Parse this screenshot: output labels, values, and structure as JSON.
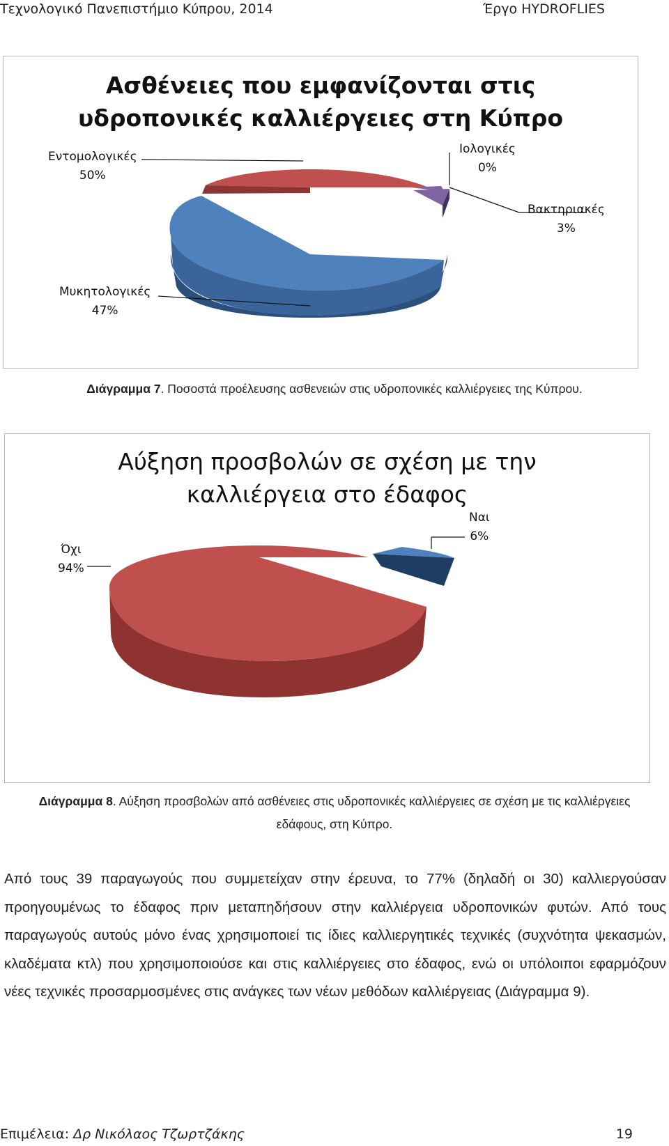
{
  "header": {
    "left": "Τεχνολογικό Πανεπιστήμιο Κύπρου, 2014",
    "right": "Έργο HYDROFLIES"
  },
  "chart1": {
    "chart_data": {
      "type": "pie",
      "title": "Ασθένειες που εμφανίζονται στις υδροπονικές καλλιέργειες στη Κύπρο",
      "title_lines": [
        "Ασθένειες που εμφανίζονται στις",
        "υδροπονικές καλλιέργειες στη Κύπρο"
      ],
      "slices": [
        {
          "label": "Εντομολογικές",
          "value": 50,
          "pct_label": "50%",
          "color": "#c0504d"
        },
        {
          "label": "Ιολογικές",
          "value": 0.4,
          "pct_label": "0%",
          "color": "#8064a2"
        },
        {
          "label": "Βακτηριακές",
          "value": 3,
          "pct_label": "3%",
          "color": "#8064a2"
        },
        {
          "label": "Μυκητολογικές",
          "value": 47,
          "pct_label": "47%",
          "color": "#4f81bd"
        }
      ]
    }
  },
  "caption1": {
    "prefix": "Διάγραμμα 7",
    "text": ". Ποσοστά προέλευσης ασθενειών στις υδροπονικές καλλιέργειες της Κύπρου."
  },
  "chart2": {
    "chart_data": {
      "type": "pie",
      "title": "Αύξηση προσβολών σε σχέση με την καλλιέργεια στο έδαφος",
      "title_lines": [
        "Αύξηση προσβολών σε σχέση με την",
        "καλλιέργεια στο έδαφος"
      ],
      "slices": [
        {
          "label": "Ναι",
          "value": 6,
          "pct_label": "6%",
          "color": "#4f81bd"
        },
        {
          "label": "Όχι",
          "value": 94,
          "pct_label": "94%",
          "color": "#c0504d"
        }
      ]
    }
  },
  "caption2": {
    "prefix": "Διάγραμμα 8",
    "line1": ". Αύξηση προσβολών από ασθένειες στις υδροπονικές καλλιέργειες σε σχέση με τις καλλιέργειες",
    "line2": "εδάφους, στη Κύπρο."
  },
  "paragraph": "Από τους 39 παραγωγούς που συμμετείχαν στην έρευνα, το 77% (δηλαδή οι 30) καλλιεργούσαν προηγουμένως το έδαφος πριν μεταπηδήσουν στην καλλιέργεια υδροπονικών φυτών. Από τους παραγωγούς αυτούς μόνο ένας χρησιμοποιεί τις ίδιες καλλιεργητικές τεχνικές (συχνότητα ψεκασμών, κλαδέματα κτλ) που χρησιμοποιούσε και στις καλλιέργειες στο έδαφος, ενώ οι υπόλοιποι εφαρμόζουν νέες τεχνικές προσαρμοσμένες στις ανάγκες των νέων μεθόδων καλλιέργειας (Διάγραμμα 9).",
  "footer": {
    "prefix": "Επιμέλεια: ",
    "author": "Δρ Νικόλαος Τζωρτζάκης",
    "page": "19"
  }
}
